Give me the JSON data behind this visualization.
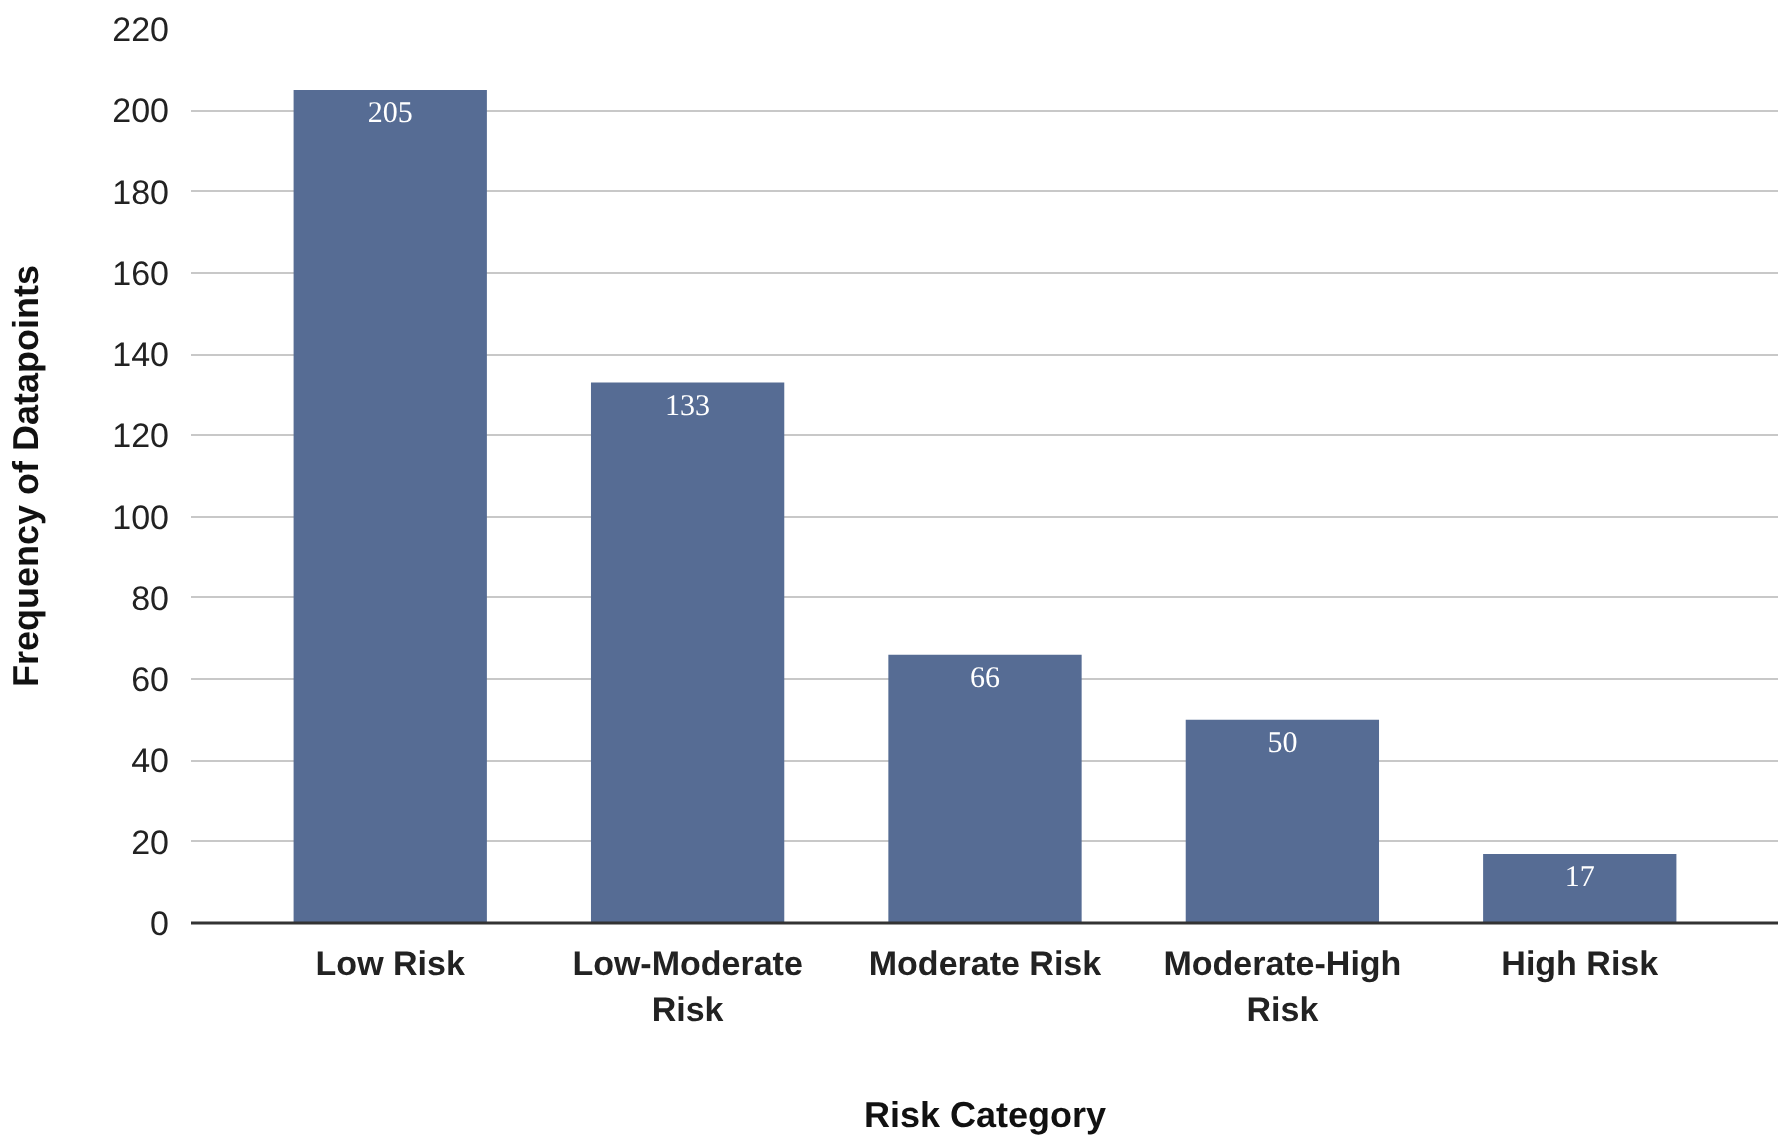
{
  "chart_data": {
    "type": "bar",
    "xlabel": "Risk Category",
    "ylabel": "Frequency of Datapoints",
    "categories": [
      "Low Risk",
      "Low-Moderate Risk",
      "Moderate Risk",
      "Moderate-High Risk",
      "High Risk"
    ],
    "values": [
      205,
      133,
      66,
      50,
      17
    ],
    "color": "#566c94",
    "ylim": [
      0,
      220
    ],
    "yticks": [
      0,
      20,
      40,
      60,
      80,
      100,
      120,
      140,
      160,
      180,
      200,
      220
    ],
    "grid": "y",
    "data_labels": true
  }
}
